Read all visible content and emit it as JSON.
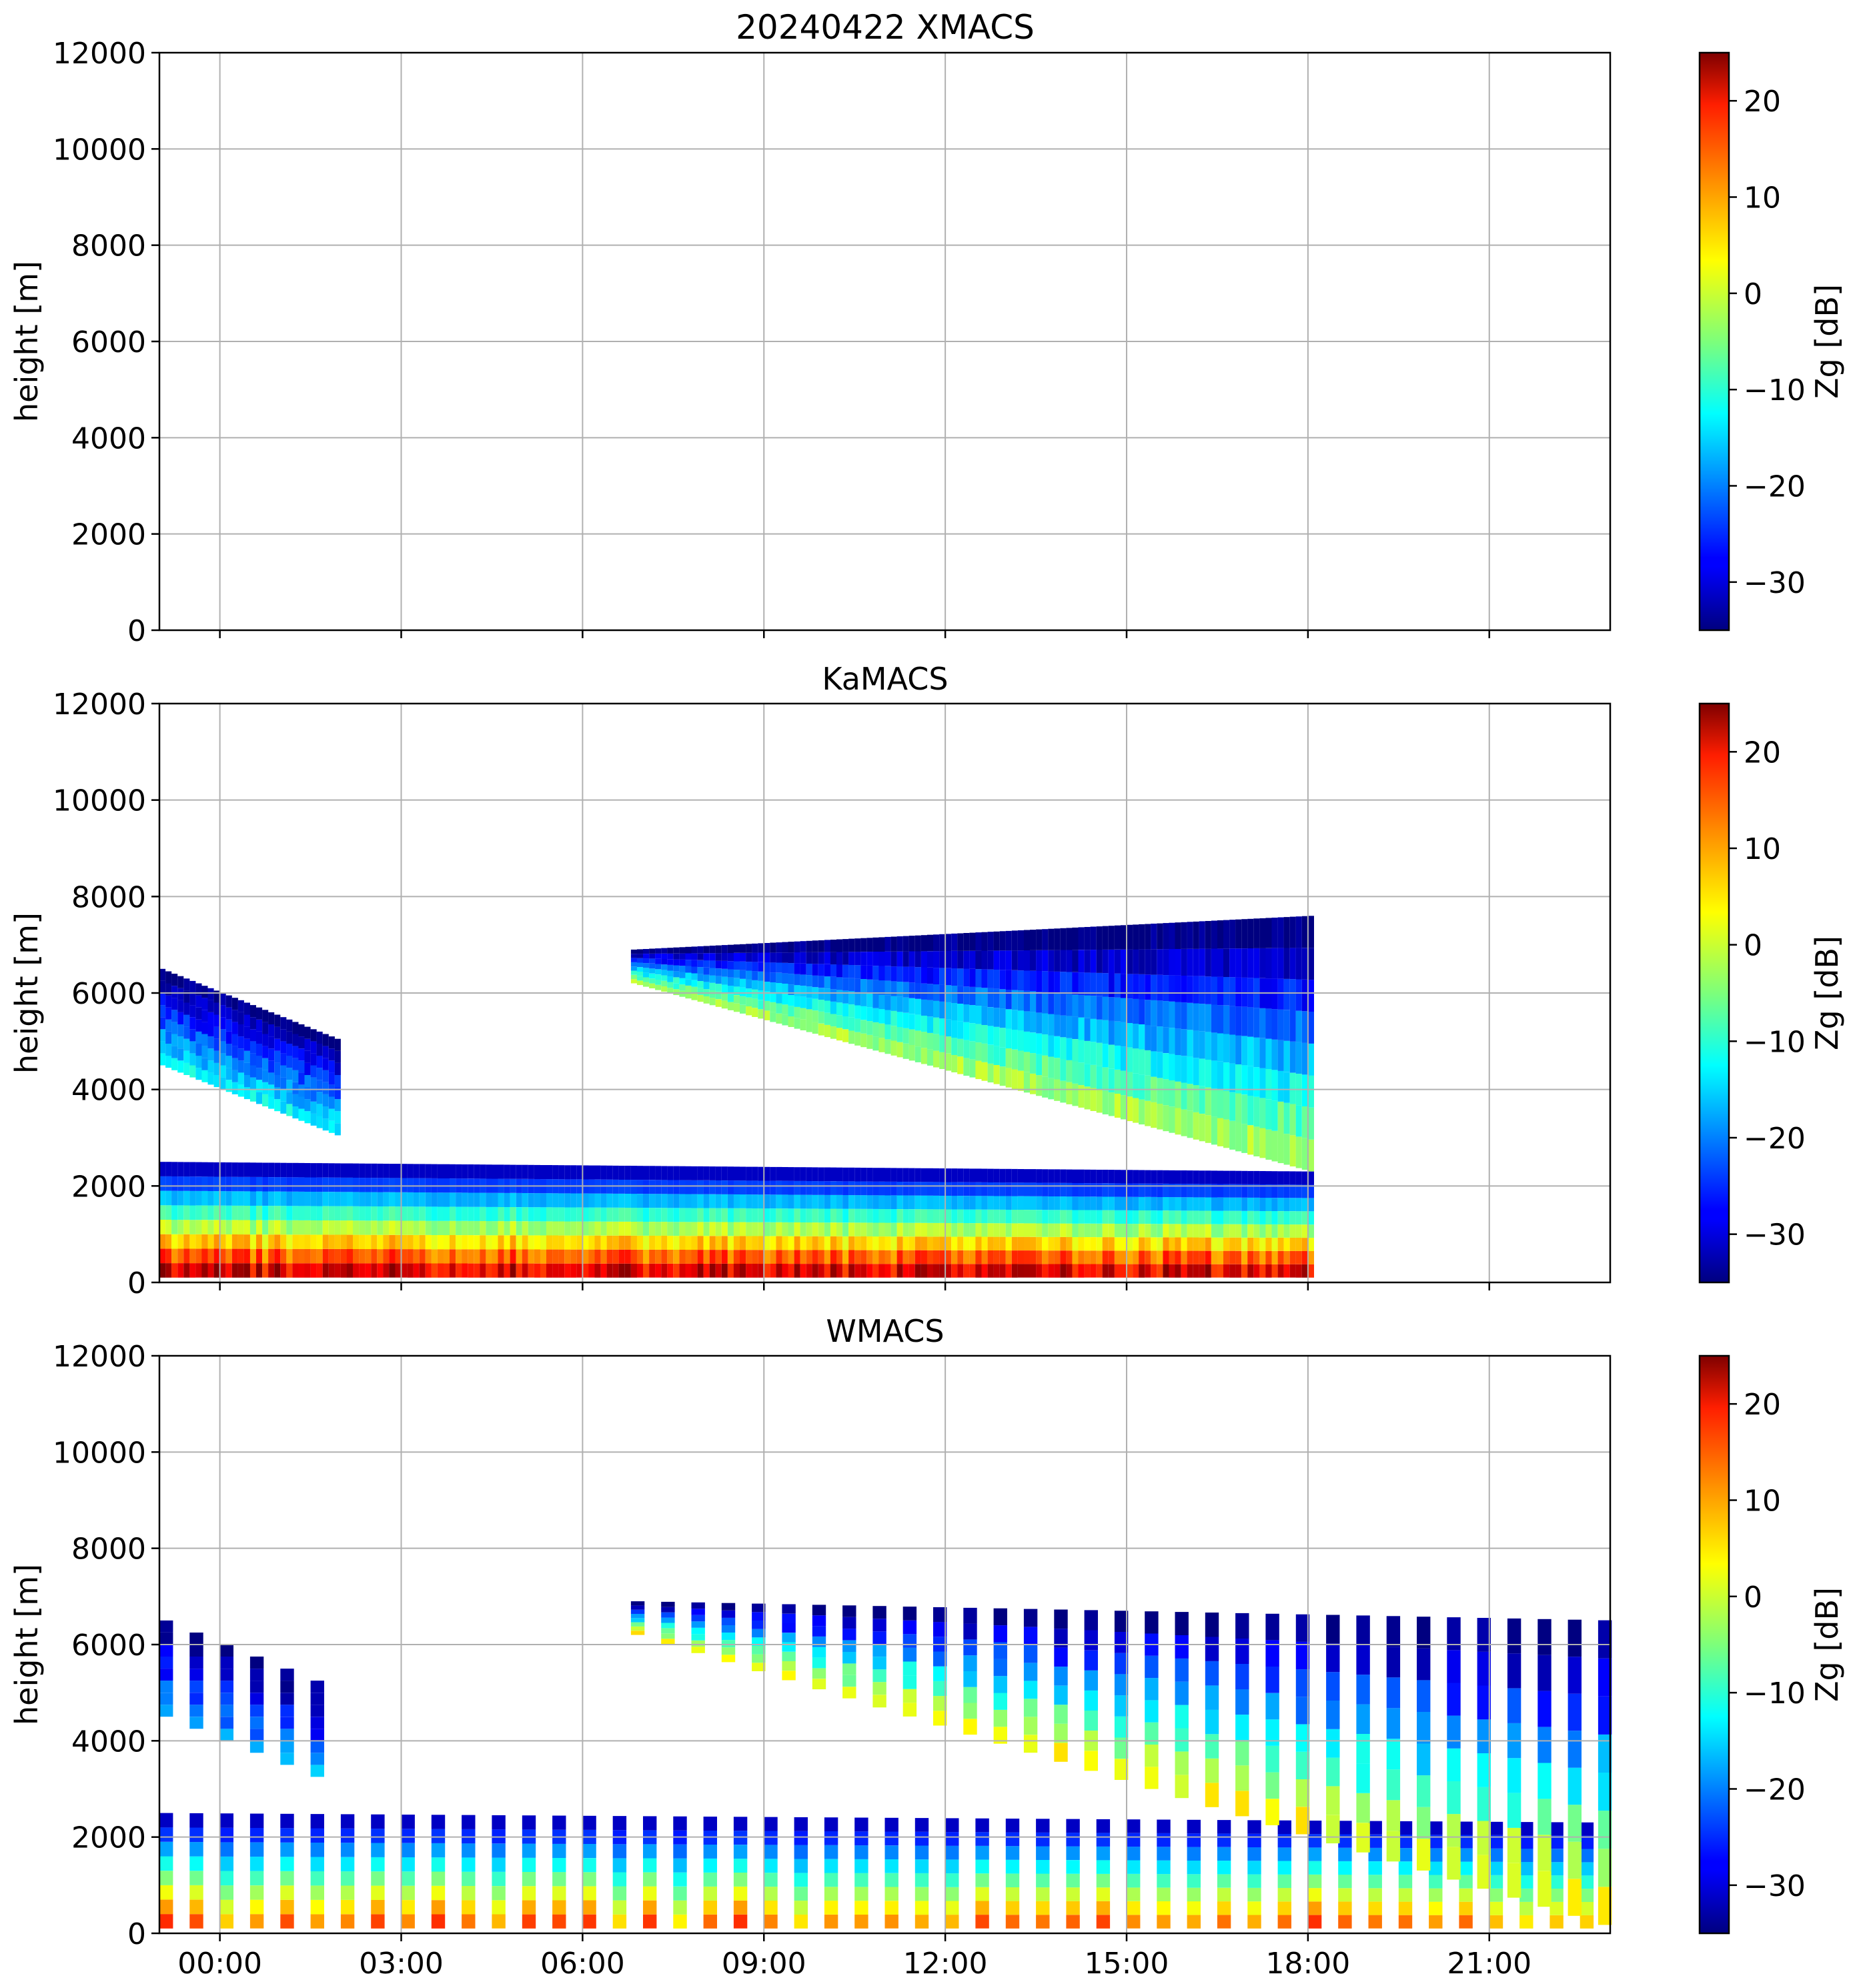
{
  "figure": {
    "colormap": "jet",
    "grid": true
  },
  "chart_data": [
    {
      "type": "heatmap",
      "title": "20240422 XMACS",
      "xlabel": "",
      "ylabel": "height [m]",
      "ylim": [
        0,
        12000
      ],
      "yticks": [
        "0",
        "2000",
        "4000",
        "6000",
        "8000",
        "10000",
        "12000"
      ],
      "xlim": [
        "23:00",
        "23:00"
      ],
      "xticks": [
        "00:00",
        "03:00",
        "06:00",
        "09:00",
        "12:00",
        "15:00",
        "18:00",
        "21:00"
      ],
      "xticklabels_shown": false,
      "colorbar": {
        "label": "Zg [dB]",
        "range": [
          -35,
          25
        ],
        "ticks": [
          "−30",
          "−20",
          "−10",
          "0",
          "10",
          "20"
        ]
      },
      "echoes": []
    },
    {
      "type": "heatmap",
      "title": "KaMACS",
      "xlabel": "",
      "ylabel": "height [m]",
      "ylim": [
        0,
        12000
      ],
      "yticks": [
        "0",
        "2000",
        "4000",
        "6000",
        "8000",
        "10000",
        "12000"
      ],
      "xlim": [
        "23:00",
        "23:00"
      ],
      "xticks": [
        "00:00",
        "03:00",
        "06:00",
        "09:00",
        "12:00",
        "15:00",
        "18:00",
        "21:00"
      ],
      "xticklabels_shown": false,
      "colorbar": {
        "label": "Zg [dB]",
        "range": [
          -35,
          25
        ],
        "ticks": [
          "−30",
          "−20",
          "−10",
          "0",
          "10",
          "20"
        ]
      },
      "data_end_time": "18:00",
      "echoes": [
        {
          "name": "boundary-layer cloud",
          "t": [
            -1,
            18
          ],
          "base_m": [
            100,
            100
          ],
          "top_m": [
            2500,
            2300
          ],
          "peak_dB": 25
        },
        {
          "name": "early upper cloud",
          "t": [
            -1,
            2
          ],
          "base_m": [
            4500,
            3000
          ],
          "top_m": [
            6500,
            5000
          ],
          "peak_dB": -10
        },
        {
          "name": "upper cloud",
          "t": [
            6.8,
            18
          ],
          "base_m": [
            6200,
            2300
          ],
          "top_m": [
            6900,
            7600
          ],
          "peak_dB": 0
        }
      ]
    },
    {
      "type": "heatmap",
      "title": "WMACS",
      "xlabel": "",
      "ylabel": "height [m]",
      "ylim": [
        0,
        12000
      ],
      "yticks": [
        "0",
        "2000",
        "4000",
        "6000",
        "8000",
        "10000",
        "12000"
      ],
      "xlim": [
        "23:00",
        "23:00"
      ],
      "xticks": [
        "00:00",
        "03:00",
        "06:00",
        "09:00",
        "12:00",
        "15:00",
        "18:00",
        "21:00"
      ],
      "xticklabels_shown": true,
      "colorbar": {
        "label": "Zg [dB]",
        "range": [
          -35,
          25
        ],
        "ticks": [
          "−30",
          "−20",
          "−10",
          "0",
          "10",
          "20"
        ]
      },
      "scan_interval_h": 0.5,
      "echoes": [
        {
          "name": "boundary-layer cloud",
          "t": [
            -1,
            23
          ],
          "base_m": [
            100,
            100
          ],
          "top_m": [
            2500,
            2300
          ],
          "peak_dB": 15
        },
        {
          "name": "early upper cloud",
          "t": [
            -1,
            2
          ],
          "base_m": [
            4500,
            3000
          ],
          "top_m": [
            6500,
            5000
          ],
          "peak_dB": -15
        },
        {
          "name": "upper cloud",
          "t": [
            6.8,
            23
          ],
          "base_m": [
            6200,
            100
          ],
          "top_m": [
            6900,
            6500
          ],
          "peak_dB": 5
        }
      ]
    }
  ]
}
